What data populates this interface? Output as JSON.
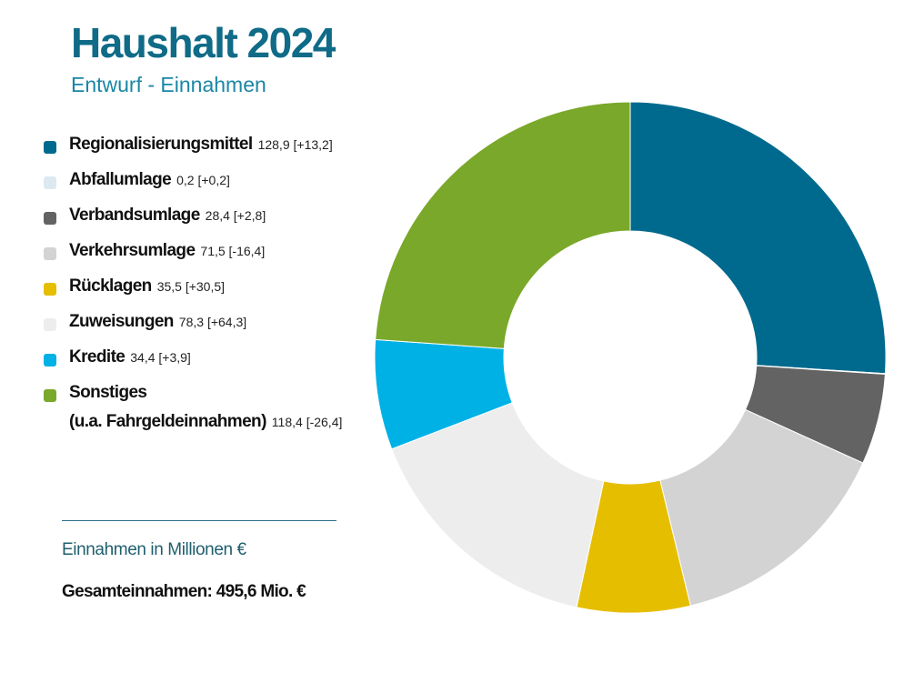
{
  "header": {
    "title": "Haushalt 2024",
    "subtitle": "Entwurf - Einnahmen"
  },
  "footer": {
    "unit_note": "Einnahmen in Millionen €",
    "total": "Gesamteinnahmen: 495,6 Mio. €"
  },
  "chart_data": {
    "type": "pie",
    "donut": true,
    "title": "Haushalt 2024",
    "subtitle": "Entwurf - Einnahmen",
    "unit": "Millionen €",
    "legend_position": "left",
    "total": 495.6,
    "slices": [
      {
        "label": "Regionalisierungsmittel",
        "label_line2": "",
        "value": 128.9,
        "value_text": "128,9",
        "change": 13.2,
        "change_text": "[+13,2]",
        "color": "#006a8e"
      },
      {
        "label": "Abfallumlage",
        "label_line2": "",
        "value": 0.2,
        "value_text": "0,2",
        "change": 0.2,
        "change_text": "[+0,2]",
        "color": "#dce9f0"
      },
      {
        "label": "Verbandsumlage",
        "label_line2": "",
        "value": 28.4,
        "value_text": "28,4",
        "change": 2.8,
        "change_text": "[+2,8]",
        "color": "#636363"
      },
      {
        "label": "Verkehrsumlage",
        "label_line2": "",
        "value": 71.5,
        "value_text": "71,5",
        "change": -16.4,
        "change_text": "[-16,4]",
        "color": "#d3d3d3"
      },
      {
        "label": "Rücklagen",
        "label_line2": "",
        "value": 35.5,
        "value_text": "35,5",
        "change": 30.5,
        "change_text": "[+30,5]",
        "color": "#e6be00"
      },
      {
        "label": "Zuweisungen",
        "label_line2": "",
        "value": 78.3,
        "value_text": "78,3",
        "change": 64.3,
        "change_text": "[+64,3]",
        "color": "#ededed"
      },
      {
        "label": "Kredite",
        "label_line2": "",
        "value": 34.4,
        "value_text": "34,4",
        "change": 3.9,
        "change_text": "[+3,9]",
        "color": "#00b1e6"
      },
      {
        "label": "Sonstiges",
        "label_line2": "(u.a. Fahrgeldeinnahmen)",
        "value": 118.4,
        "value_text": "118,4",
        "change": -26.4,
        "change_text": "[-26,4]",
        "color": "#7aa82a"
      }
    ]
  }
}
